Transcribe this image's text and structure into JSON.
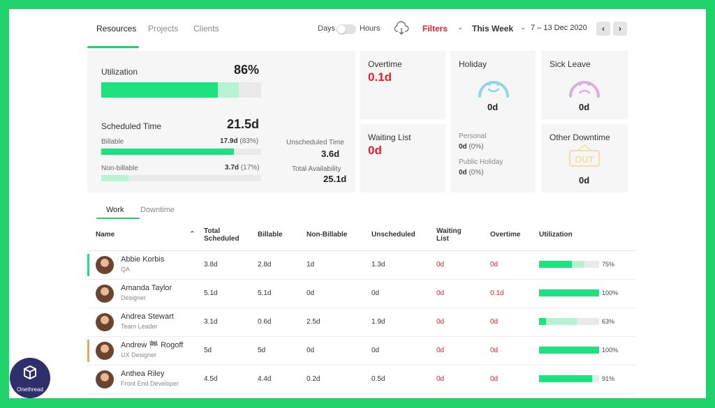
{
  "nav": {
    "tabs": [
      "Resources",
      "Projects",
      "Clients"
    ],
    "toggle_left": "Days",
    "toggle_right": "Hours",
    "filters_label": "Filters",
    "week_label": "This Week",
    "date_range": "7 – 13 Dec 2020",
    "prev_icon": "chevron-left-icon",
    "next_icon": "chevron-right-icon",
    "download_icon": "cloud-download-icon"
  },
  "summary": {
    "utilization": {
      "label": "Utilization",
      "value": "86%",
      "bar_fill": 0.73,
      "bar_secondary": 0.86
    },
    "scheduled": {
      "label": "Scheduled Time",
      "value": "21.5d",
      "billable_label": "Billable",
      "billable_value": "17.9d",
      "billable_pct": "(83%)",
      "billable_fill": 0.83,
      "nonbillable_label": "Non-billable",
      "nonbillable_value": "3.7d",
      "nonbillable_pct": "(17%)",
      "nonbillable_fill": 0.17
    },
    "unscheduled": {
      "label": "Unscheduled Time",
      "value": "3.6d"
    },
    "availability": {
      "label": "Total Availability",
      "value": "25.1d"
    },
    "overtime": {
      "label": "Overtime",
      "value": "0.1d"
    },
    "waiting": {
      "label": "Waiting List",
      "value": "0d"
    },
    "holiday": {
      "label": "Holiday",
      "value": "0d",
      "personal_label": "Personal",
      "personal_value": "0d",
      "personal_pct": "(0%)",
      "public_label": "Public Holiday",
      "public_value": "0d",
      "public_pct": "(0%)"
    },
    "sick": {
      "label": "Sick Leave",
      "value": "0d"
    },
    "other": {
      "label": "Other Downtime",
      "value": "0d",
      "sign_text": "OUT"
    }
  },
  "subtabs": [
    "Work",
    "Downtime"
  ],
  "table": {
    "columns": {
      "name": "Name",
      "total_a": "Total",
      "total_b": "Scheduled",
      "billable": "Billable",
      "nonbillable": "Non-Billable",
      "unscheduled": "Unscheduled",
      "waiting_a": "Waiting",
      "waiting_b": "List",
      "overtime": "Overtime",
      "utilization": "Utilization"
    },
    "rows": [
      {
        "name": "Abbie Korbis",
        "role": "QA",
        "total": "3.8d",
        "billable": "2.8d",
        "nonbillable": "1d",
        "unscheduled": "1.3d",
        "waiting": "0d",
        "overtime": "0d",
        "util": "75%",
        "fill": 0.55,
        "secondary": 0.75,
        "marker": "#1de27f",
        "overtime_red": true
      },
      {
        "name": "Amanda Taylor",
        "role": "Designer",
        "total": "5.1d",
        "billable": "5.1d",
        "nonbillable": "0d",
        "unscheduled": "0d",
        "waiting": "0d",
        "overtime": "0.1d",
        "util": "100%",
        "fill": 1.0,
        "secondary": 1.0,
        "marker": "",
        "overtime_red": true
      },
      {
        "name": "Andrea Stewart",
        "role": "Team Leader",
        "total": "3.1d",
        "billable": "0.6d",
        "nonbillable": "2.5d",
        "unscheduled": "1.9d",
        "waiting": "0d",
        "overtime": "0d",
        "util": "63%",
        "fill": 0.12,
        "secondary": 0.63,
        "marker": "",
        "overtime_red": true
      },
      {
        "name": "Andrew 🏁 Rogoff",
        "role": "UX Designer",
        "total": "5d",
        "billable": "5d",
        "nonbillable": "0d",
        "unscheduled": "0d",
        "waiting": "0d",
        "overtime": "0d",
        "util": "100%",
        "fill": 1.0,
        "secondary": 1.0,
        "marker": "#f5a25d",
        "overtime_red": true
      },
      {
        "name": "Anthea Riley",
        "role": "Front End Developer",
        "total": "4.5d",
        "billable": "4.4d",
        "nonbillable": "0.2d",
        "unscheduled": "0.5d",
        "waiting": "0d",
        "overtime": "0d",
        "util": "91%",
        "fill": 0.88,
        "secondary": 0.91,
        "marker": "",
        "overtime_red": true
      }
    ]
  },
  "logo": {
    "name": "Onethread"
  },
  "colors": {
    "accent": "#1de27f",
    "accent_light": "#b7f3d3",
    "alert": "#e3202a",
    "frame": "#1fd26a"
  }
}
